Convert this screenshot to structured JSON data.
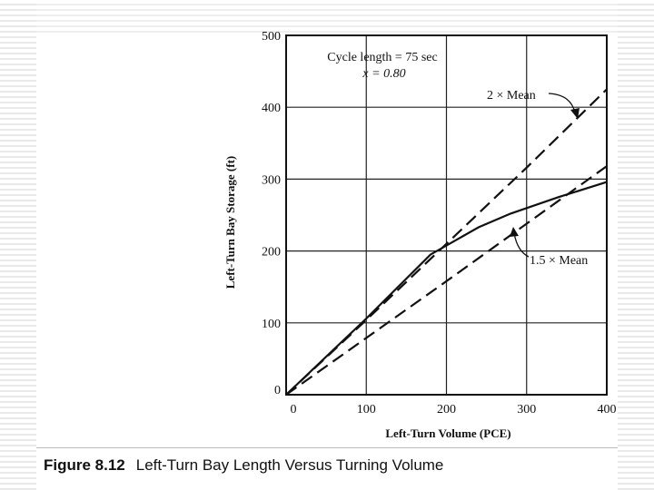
{
  "caption": {
    "figure_number": "Figure 8.12",
    "text": "Left-Turn Bay Length Versus Turning Volume"
  },
  "chart_data": {
    "type": "line",
    "title": "",
    "xlabel": "Left-Turn Volume (PCE)",
    "ylabel": "Left-Turn Bay Storage (ft)",
    "xlim": [
      0,
      400
    ],
    "ylim": [
      0,
      500
    ],
    "xticks": [
      0,
      100,
      200,
      300,
      400
    ],
    "yticks": [
      0,
      100,
      200,
      300,
      400,
      500
    ],
    "grid": true,
    "annotations": [
      {
        "text": "Cycle length = 75 sec"
      },
      {
        "text": "x = 0.80"
      }
    ],
    "series": [
      {
        "name": "2 × Mean",
        "style": "dashed",
        "x": [
          0,
          100,
          200,
          300,
          400
        ],
        "y": [
          0,
          104,
          210,
          316,
          425
        ]
      },
      {
        "name": "",
        "style": "solid",
        "x": [
          0,
          100,
          180,
          240,
          280,
          340,
          400
        ],
        "y": [
          0,
          106,
          195,
          233,
          252,
          275,
          296
        ]
      },
      {
        "name": "1.5 × Mean",
        "style": "dashed",
        "x": [
          0,
          100,
          200,
          300,
          400
        ],
        "y": [
          0,
          79,
          158,
          238,
          318
        ]
      }
    ]
  }
}
